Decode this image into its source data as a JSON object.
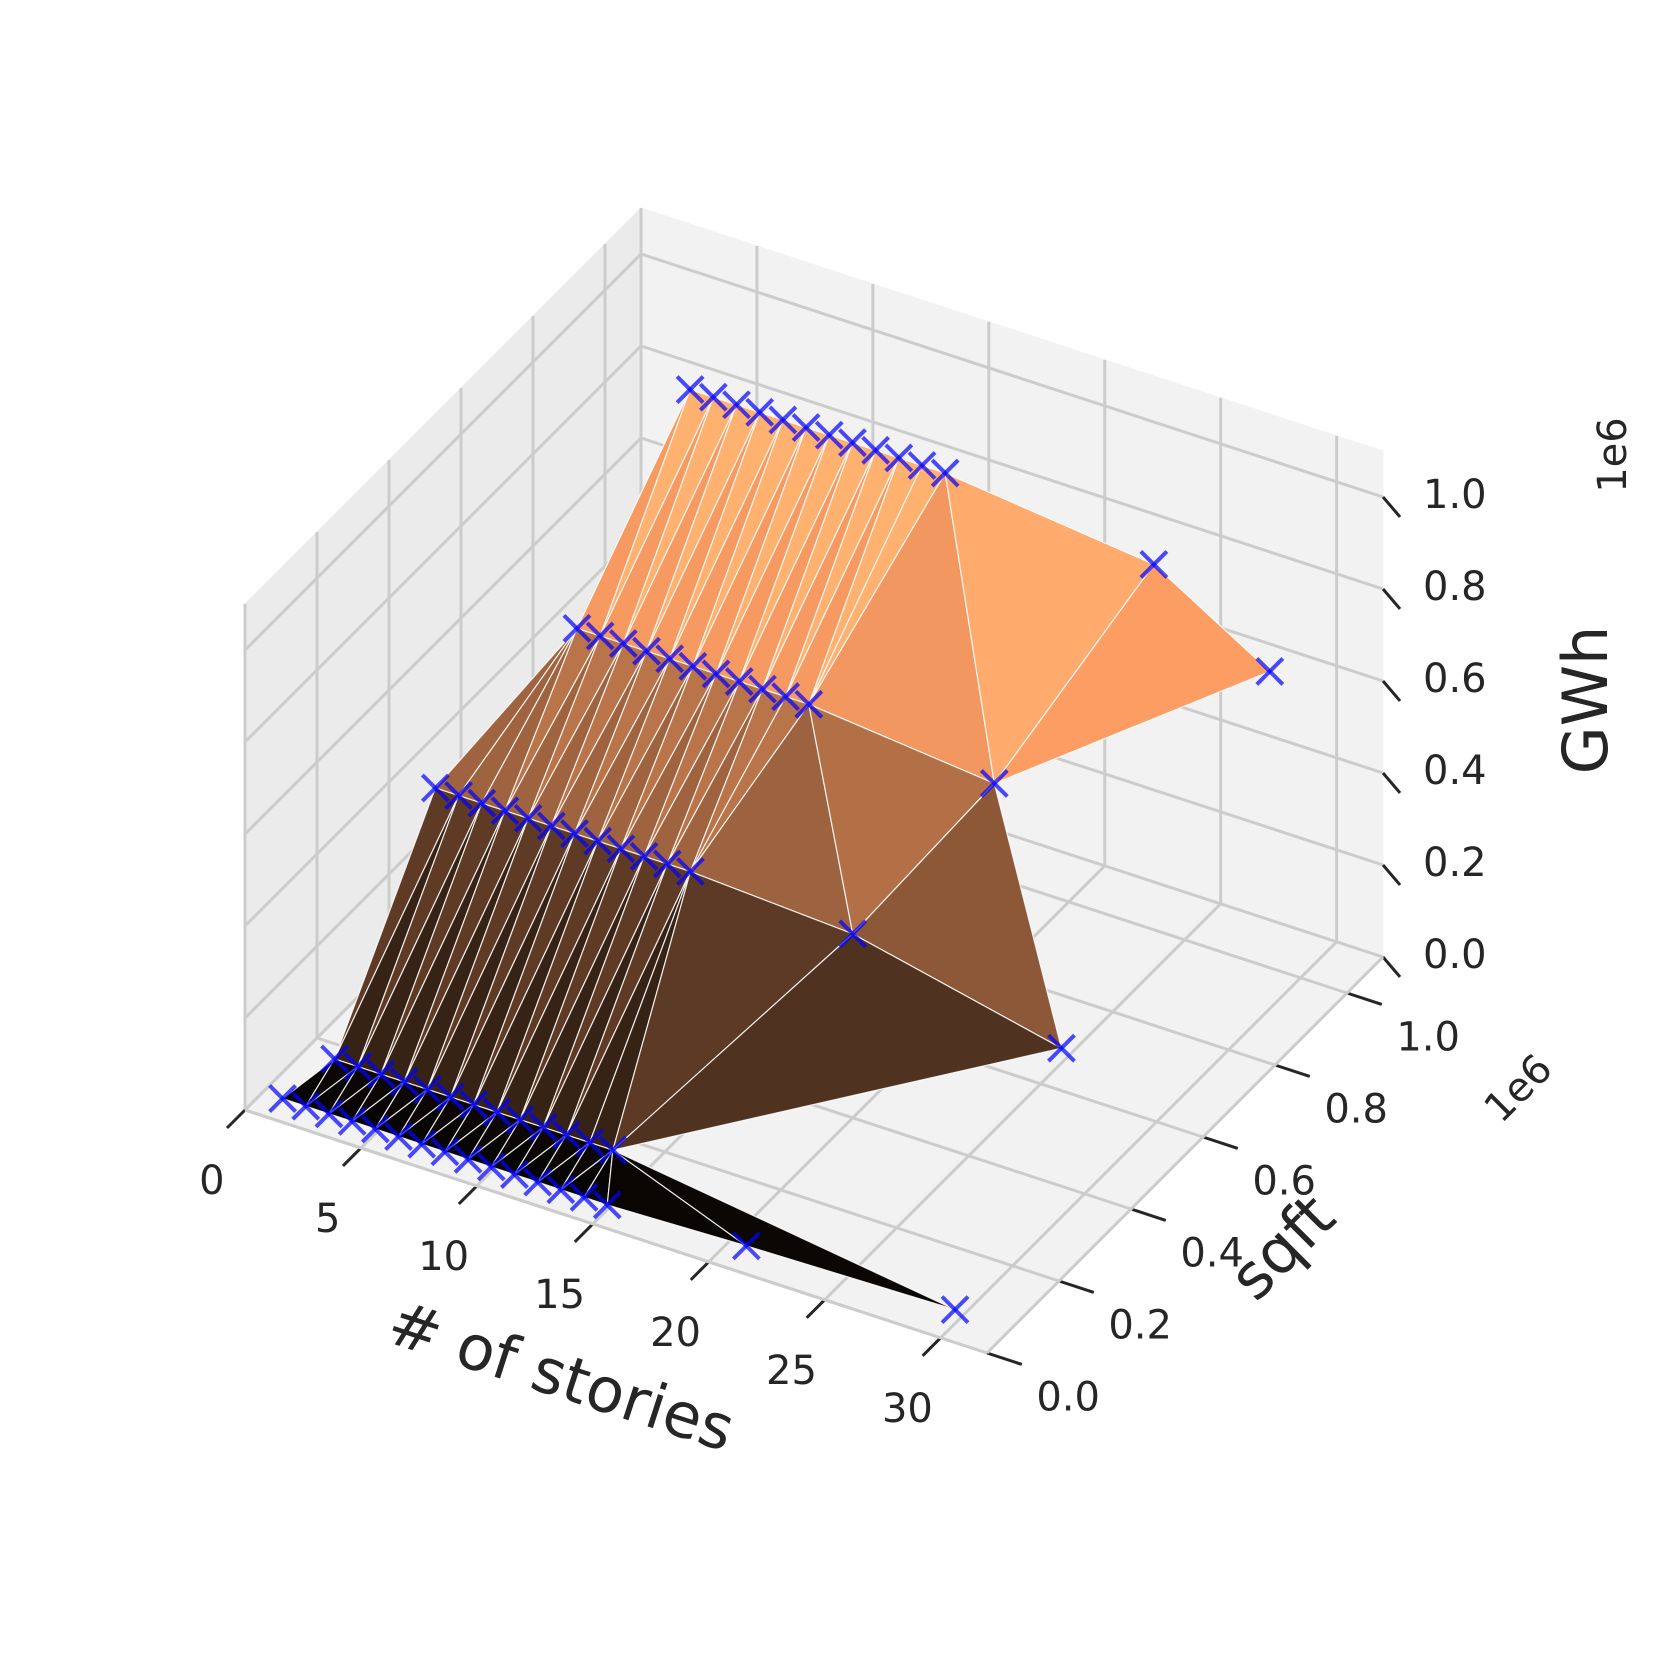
{
  "chart_data": {
    "type": "scatter3d",
    "xlabel": "# of stories",
    "ylabel": "sqft",
    "zlabel": "GWh",
    "y_offset_label": "1e6",
    "z_offset_label": "1e6",
    "colormap": "copper",
    "marker_color": "#0000ff",
    "grid": true,
    "x": [
      1,
      2,
      3,
      4,
      5,
      6,
      7,
      8,
      9,
      10,
      11,
      12,
      13,
      14,
      15,
      21,
      30,
      2,
      3,
      4,
      5,
      6,
      7,
      8,
      9,
      10,
      11,
      12,
      13,
      14,
      2,
      3,
      4,
      5,
      6,
      7,
      8,
      9,
      10,
      11,
      12,
      13,
      20,
      29,
      5,
      6,
      7,
      8,
      9,
      10,
      11,
      12,
      13,
      14,
      15,
      23,
      6,
      7,
      8,
      9,
      10,
      11,
      12,
      13,
      14,
      15,
      16,
      17,
      26,
      31
    ],
    "y": [
      0.04,
      0.04,
      0.04,
      0.04,
      0.04,
      0.04,
      0.04,
      0.04,
      0.04,
      0.04,
      0.04,
      0.04,
      0.04,
      0.04,
      0.04,
      0.04,
      0.04,
      0.12,
      0.12,
      0.12,
      0.12,
      0.12,
      0.12,
      0.12,
      0.12,
      0.12,
      0.12,
      0.12,
      0.12,
      0.12,
      0.4,
      0.4,
      0.4,
      0.4,
      0.4,
      0.4,
      0.4,
      0.4,
      0.4,
      0.4,
      0.4,
      0.4,
      0.4,
      0.4,
      0.6,
      0.6,
      0.6,
      0.6,
      0.6,
      0.6,
      0.6,
      0.6,
      0.6,
      0.6,
      0.6,
      0.6,
      0.85,
      0.85,
      0.85,
      0.85,
      0.85,
      0.85,
      0.85,
      0.85,
      0.85,
      0.85,
      0.85,
      0.85,
      0.85,
      0.85
    ],
    "z": [
      0.01,
      0.01,
      0.01,
      0.01,
      0.01,
      0.01,
      0.01,
      0.01,
      0.01,
      0.01,
      0.01,
      0.01,
      0.01,
      0.01,
      0.01,
      0.02,
      0.03,
      0.05,
      0.05,
      0.05,
      0.05,
      0.05,
      0.05,
      0.05,
      0.05,
      0.05,
      0.05,
      0.05,
      0.05,
      0.05,
      0.42,
      0.42,
      0.42,
      0.42,
      0.42,
      0.42,
      0.42,
      0.42,
      0.42,
      0.42,
      0.42,
      0.42,
      0.4,
      0.3,
      0.66,
      0.66,
      0.66,
      0.66,
      0.66,
      0.66,
      0.66,
      0.66,
      0.66,
      0.66,
      0.66,
      0.62,
      1.0,
      1.0,
      1.0,
      1.0,
      1.0,
      1.0,
      1.0,
      1.0,
      1.0,
      1.0,
      1.0,
      1.0,
      0.95,
      0.8
    ],
    "xlim": [
      0,
      32
    ],
    "ylim": [
      0,
      1.1
    ],
    "zlim": [
      0,
      1.1
    ],
    "xticks": [
      0,
      5,
      10,
      15,
      20,
      25,
      30
    ],
    "yticks": [
      {
        "value": 0,
        "label": "0.0"
      },
      0.2,
      0.4,
      0.6,
      0.8,
      {
        "value": 1,
        "label": "1.0"
      }
    ],
    "zticks": [
      {
        "value": 0,
        "label": "0.0"
      },
      0.2,
      0.4,
      0.6,
      0.8,
      {
        "value": 1,
        "label": "1.0"
      }
    ]
  }
}
